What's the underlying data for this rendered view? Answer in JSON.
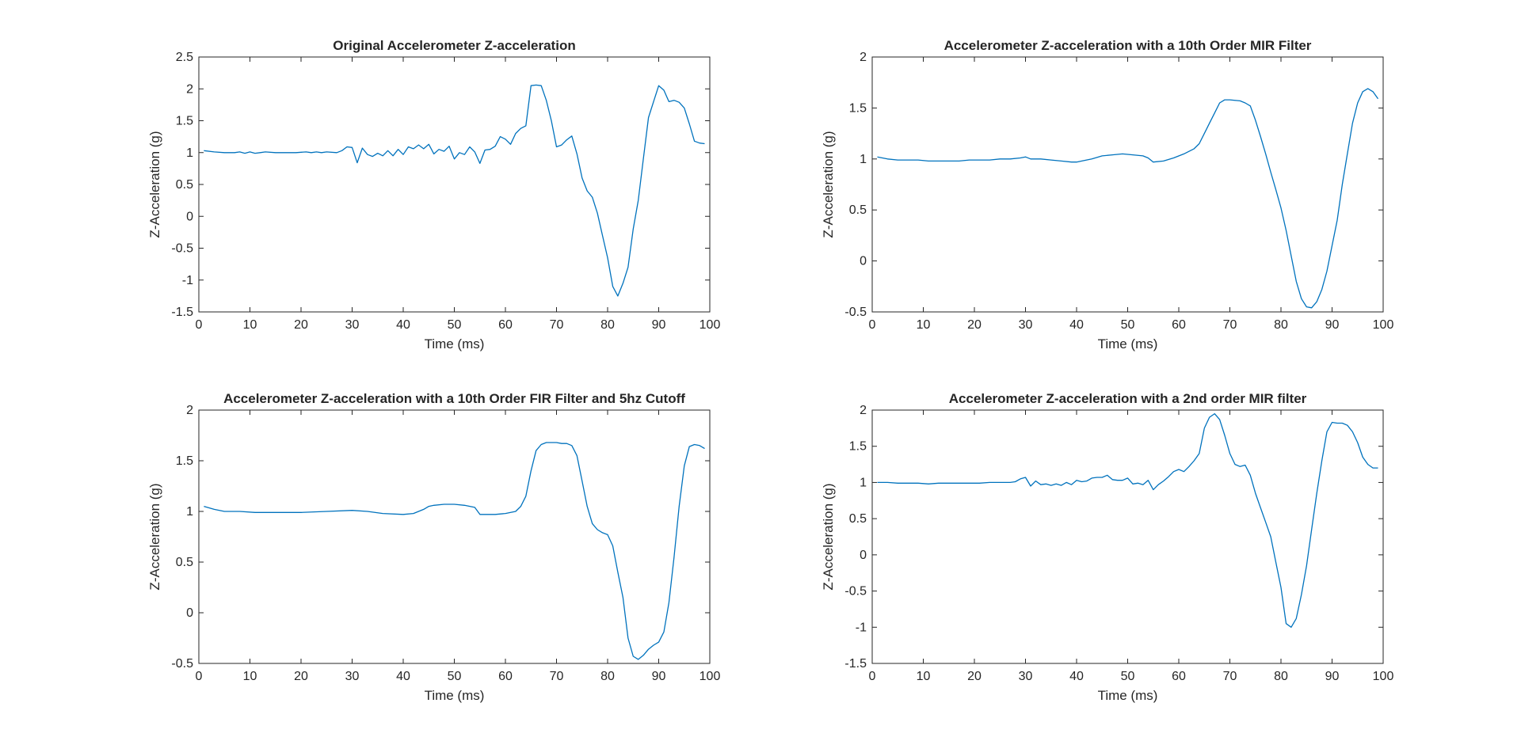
{
  "chart_data": [
    {
      "type": "line",
      "title": "Original Accelerometer Z-acceleration",
      "xlabel": "Time (ms)",
      "ylabel": "Z-Acceleration (g)",
      "xlim": [
        0,
        100
      ],
      "ylim": [
        -1.5,
        2.5
      ],
      "xticks": [
        0,
        10,
        20,
        30,
        40,
        50,
        60,
        70,
        80,
        90,
        100
      ],
      "yticks": [
        -1.5,
        -1,
        -0.5,
        0,
        0.5,
        1,
        1.5,
        2,
        2.5
      ],
      "grid": false,
      "color": "#0072BD",
      "series": [
        {
          "x": [
            1,
            3,
            5,
            7,
            8,
            9,
            10,
            11,
            12,
            13,
            15,
            17,
            19,
            21,
            22,
            23,
            24,
            25,
            27,
            28,
            29,
            30,
            31,
            32,
            33,
            34,
            35,
            36,
            37,
            38,
            39,
            40,
            41,
            42,
            43,
            44,
            45,
            46,
            47,
            48,
            49,
            50,
            51,
            52,
            53,
            54,
            55,
            56,
            57,
            58,
            59,
            60,
            61,
            62,
            63,
            64,
            65,
            66,
            67,
            68,
            69,
            70,
            71,
            72,
            73,
            74,
            75,
            76,
            77,
            78,
            79,
            80,
            81,
            82,
            83,
            84,
            85,
            86,
            87,
            88,
            89,
            90,
            91,
            92,
            93,
            94,
            95,
            96,
            97,
            98,
            99
          ],
          "values": [
            1.03,
            1.01,
            1.0,
            1.0,
            1.01,
            0.99,
            1.01,
            0.99,
            1.0,
            1.01,
            1.0,
            1.0,
            1.0,
            1.01,
            1.0,
            1.01,
            1.0,
            1.01,
            1.0,
            1.03,
            1.09,
            1.08,
            0.84,
            1.07,
            0.97,
            0.94,
            0.99,
            0.95,
            1.03,
            0.95,
            1.05,
            0.97,
            1.09,
            1.06,
            1.12,
            1.06,
            1.13,
            0.98,
            1.05,
            1.02,
            1.1,
            0.9,
            1.0,
            0.97,
            1.09,
            1.01,
            0.83,
            1.04,
            1.05,
            1.1,
            1.25,
            1.21,
            1.13,
            1.3,
            1.38,
            1.42,
            2.05,
            2.06,
            2.05,
            1.82,
            1.5,
            1.09,
            1.12,
            1.2,
            1.26,
            0.98,
            0.6,
            0.4,
            0.3,
            0.05,
            -0.3,
            -0.65,
            -1.1,
            -1.25,
            -1.05,
            -0.8,
            -0.2,
            0.25,
            0.9,
            1.55,
            1.8,
            2.05,
            1.98,
            1.8,
            1.82,
            1.79,
            1.7,
            1.45,
            1.18,
            1.15,
            1.14
          ]
        }
      ]
    },
    {
      "type": "line",
      "title": "Accelerometer Z-acceleration with a 10th Order MIR Filter",
      "xlabel": "Time (ms)",
      "ylabel": "Z-Acceleration (g)",
      "xlim": [
        0,
        100
      ],
      "ylim": [
        -0.5,
        2
      ],
      "xticks": [
        0,
        10,
        20,
        30,
        40,
        50,
        60,
        70,
        80,
        90,
        100
      ],
      "yticks": [
        -0.5,
        0,
        0.5,
        1,
        1.5,
        2
      ],
      "grid": false,
      "color": "#0072BD",
      "series": [
        {
          "x": [
            1,
            3,
            5,
            7,
            9,
            11,
            13,
            15,
            17,
            19,
            21,
            23,
            25,
            27,
            29,
            30,
            31,
            33,
            35,
            37,
            39,
            40,
            41,
            43,
            45,
            47,
            49,
            51,
            53,
            54,
            55,
            57,
            59,
            61,
            63,
            64,
            65,
            66,
            67,
            68,
            69,
            70,
            72,
            73,
            74,
            75,
            76,
            77,
            78,
            79,
            80,
            81,
            82,
            83,
            84,
            85,
            86,
            87,
            88,
            89,
            90,
            91,
            92,
            93,
            94,
            95,
            96,
            97,
            98,
            99
          ],
          "values": [
            1.02,
            1.0,
            0.99,
            0.99,
            0.99,
            0.98,
            0.98,
            0.98,
            0.98,
            0.99,
            0.99,
            0.99,
            1.0,
            1.0,
            1.01,
            1.02,
            1.0,
            1.0,
            0.99,
            0.98,
            0.97,
            0.97,
            0.98,
            1.0,
            1.03,
            1.04,
            1.05,
            1.04,
            1.03,
            1.01,
            0.97,
            0.98,
            1.01,
            1.05,
            1.1,
            1.15,
            1.25,
            1.35,
            1.45,
            1.55,
            1.58,
            1.58,
            1.57,
            1.55,
            1.52,
            1.38,
            1.22,
            1.05,
            0.87,
            0.7,
            0.52,
            0.3,
            0.05,
            -0.2,
            -0.37,
            -0.45,
            -0.46,
            -0.4,
            -0.28,
            -0.1,
            0.15,
            0.4,
            0.75,
            1.05,
            1.35,
            1.55,
            1.66,
            1.69,
            1.66,
            1.59
          ]
        }
      ]
    },
    {
      "type": "line",
      "title": "Accelerometer Z-acceleration with a 10th Order FIR Filter and 5hz Cutoff",
      "xlabel": "Time (ms)",
      "ylabel": "Z-Acceleration (g)",
      "xlim": [
        0,
        100
      ],
      "ylim": [
        -0.5,
        2
      ],
      "xticks": [
        0,
        10,
        20,
        30,
        40,
        50,
        60,
        70,
        80,
        90,
        100
      ],
      "yticks": [
        -0.5,
        0,
        0.5,
        1,
        1.5,
        2
      ],
      "grid": false,
      "color": "#0072BD",
      "series": [
        {
          "x": [
            1,
            3,
            5,
            8,
            11,
            15,
            20,
            25,
            30,
            33,
            36,
            40,
            42,
            44,
            45,
            46,
            48,
            50,
            52,
            54,
            55,
            58,
            60,
            62,
            63,
            64,
            65,
            66,
            67,
            68,
            69,
            70,
            71,
            72,
            73,
            74,
            75,
            76,
            77,
            78,
            79,
            80,
            81,
            82,
            83,
            84,
            85,
            86,
            87,
            88,
            89,
            90,
            91,
            92,
            93,
            94,
            95,
            96,
            97,
            98,
            99
          ],
          "values": [
            1.05,
            1.02,
            1.0,
            1.0,
            0.99,
            0.99,
            0.99,
            1.0,
            1.01,
            1.0,
            0.98,
            0.97,
            0.98,
            1.02,
            1.05,
            1.06,
            1.07,
            1.07,
            1.06,
            1.04,
            0.97,
            0.97,
            0.98,
            1.0,
            1.05,
            1.15,
            1.4,
            1.6,
            1.66,
            1.68,
            1.68,
            1.68,
            1.67,
            1.67,
            1.65,
            1.55,
            1.3,
            1.05,
            0.88,
            0.82,
            0.79,
            0.77,
            0.66,
            0.4,
            0.15,
            -0.25,
            -0.43,
            -0.46,
            -0.42,
            -0.36,
            -0.32,
            -0.29,
            -0.19,
            0.1,
            0.55,
            1.05,
            1.45,
            1.64,
            1.66,
            1.65,
            1.62
          ]
        }
      ]
    },
    {
      "type": "line",
      "title": "Accelerometer Z-acceleration with a 2nd order MIR filter",
      "xlabel": "Time (ms)",
      "ylabel": "Z-Acceleration (g)",
      "xlim": [
        0,
        100
      ],
      "ylim": [
        -1.5,
        2
      ],
      "xticks": [
        0,
        10,
        20,
        30,
        40,
        50,
        60,
        70,
        80,
        90,
        100
      ],
      "yticks": [
        -1.5,
        -1,
        -0.5,
        0,
        0.5,
        1,
        1.5,
        2
      ],
      "grid": false,
      "color": "#0072BD",
      "series": [
        {
          "x": [
            1,
            3,
            5,
            7,
            9,
            11,
            13,
            15,
            17,
            19,
            21,
            23,
            25,
            27,
            28,
            29,
            30,
            31,
            32,
            33,
            34,
            35,
            36,
            37,
            38,
            39,
            40,
            41,
            42,
            43,
            44,
            45,
            46,
            47,
            48,
            49,
            50,
            51,
            52,
            53,
            54,
            55,
            56,
            57,
            58,
            59,
            60,
            61,
            62,
            63,
            64,
            65,
            66,
            67,
            68,
            69,
            70,
            71,
            72,
            73,
            74,
            75,
            76,
            77,
            78,
            79,
            80,
            81,
            82,
            83,
            84,
            85,
            86,
            87,
            88,
            89,
            90,
            91,
            92,
            93,
            94,
            95,
            96,
            97,
            98,
            99
          ],
          "values": [
            1.0,
            1.0,
            0.99,
            0.99,
            0.99,
            0.98,
            0.99,
            0.99,
            0.99,
            0.99,
            0.99,
            1.0,
            1.0,
            1.0,
            1.01,
            1.05,
            1.07,
            0.95,
            1.02,
            0.97,
            0.98,
            0.96,
            0.98,
            0.96,
            1.0,
            0.97,
            1.03,
            1.01,
            1.02,
            1.06,
            1.07,
            1.07,
            1.1,
            1.04,
            1.03,
            1.03,
            1.06,
            0.98,
            0.99,
            0.97,
            1.03,
            0.9,
            0.97,
            1.02,
            1.08,
            1.15,
            1.18,
            1.15,
            1.22,
            1.3,
            1.4,
            1.75,
            1.9,
            1.95,
            1.87,
            1.65,
            1.4,
            1.25,
            1.22,
            1.24,
            1.1,
            0.85,
            0.65,
            0.45,
            0.25,
            -0.1,
            -0.45,
            -0.95,
            -1.0,
            -0.88,
            -0.55,
            -0.15,
            0.35,
            0.85,
            1.3,
            1.7,
            1.83,
            1.82,
            1.82,
            1.79,
            1.7,
            1.55,
            1.35,
            1.25,
            1.2,
            1.2
          ]
        }
      ]
    }
  ]
}
